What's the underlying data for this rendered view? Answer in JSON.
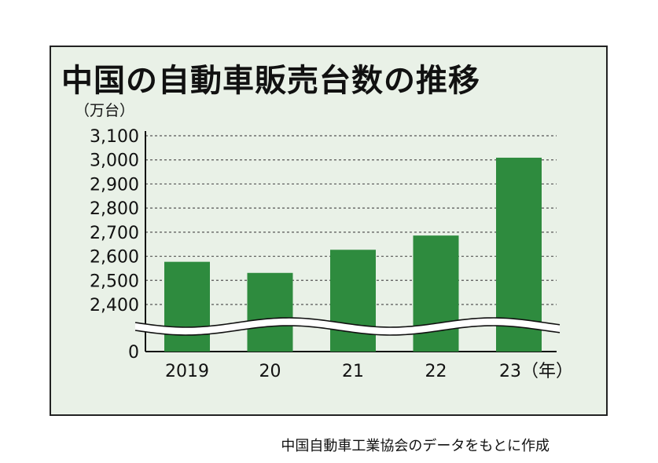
{
  "title": "中国の自動車販売台数の推移",
  "unit_label": "（万台）",
  "source": "中国自動車工業協会のデータをもとに作成",
  "colors": {
    "bar": "#2e8b3e",
    "background": "#e9f1e7",
    "frame": "#222222",
    "grid": "#555555"
  },
  "chart_data": {
    "type": "bar",
    "title": "中国の自動車販売台数の推移",
    "ylabel": "（万台）",
    "xlabel": "",
    "categories": [
      "2019",
      "20",
      "21",
      "22",
      "23（年）"
    ],
    "values": [
      2577,
      2531,
      2627,
      2686,
      3009
    ],
    "ylim": [
      2400,
      3100
    ],
    "yticks": [
      3100,
      3000,
      2900,
      2800,
      2700,
      2600,
      2500,
      2400,
      0
    ],
    "ytick_labels": [
      "3,100",
      "3,000",
      "2,900",
      "2,800",
      "2,700",
      "2,600",
      "2,500",
      "2,400",
      "0"
    ],
    "axis_break": true,
    "grid": true
  }
}
